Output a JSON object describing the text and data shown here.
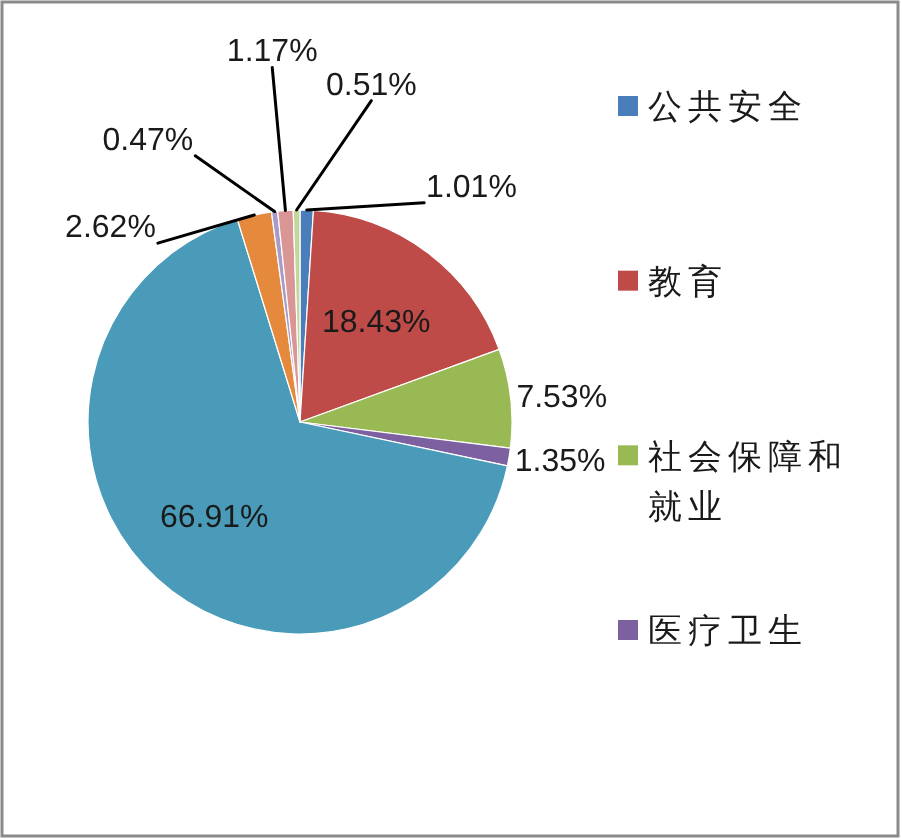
{
  "chart_data": {
    "type": "pie",
    "categories": [
      "公共安全",
      "教育",
      "社会保障和就业",
      "医疗卫生",
      null,
      null,
      null,
      null,
      null
    ],
    "values": [
      1.01,
      18.43,
      7.53,
      1.35,
      66.91,
      2.62,
      0.47,
      1.17,
      0.51
    ],
    "colors": [
      "#4a7ebb",
      "#be4b48",
      "#98b954",
      "#7d60a0",
      "#4a9bb9",
      "#e58a3c",
      "#a99bc8",
      "#d99694",
      "#c3d69b"
    ],
    "value_labels": [
      "1.01%",
      "18.43%",
      "7.53%",
      "1.35%",
      "66.91%",
      "2.62%",
      "0.47%",
      "1.17%",
      "0.51%"
    ],
    "legend": "right"
  }
}
